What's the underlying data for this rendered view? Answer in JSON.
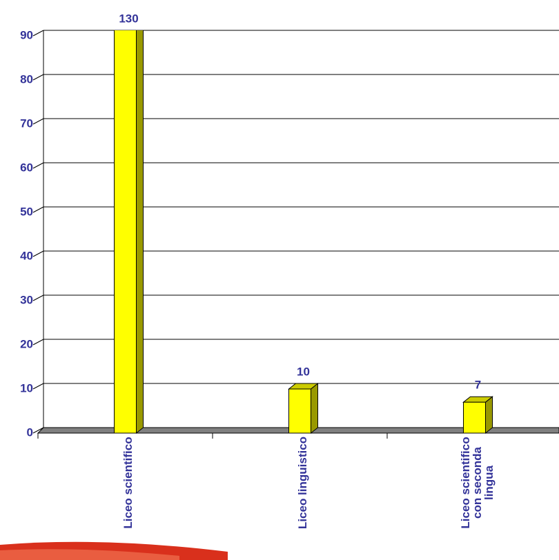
{
  "chart_data": {
    "type": "bar3d",
    "categories": [
      "Liceo scientifico",
      "Liceo linguistico",
      "Liceo scientifico con seconda lingua"
    ],
    "values": [
      130,
      10,
      7
    ],
    "color": "#ffff00",
    "ylim": [
      0,
      90
    ],
    "yticks": [
      0,
      10,
      20,
      30,
      40,
      50,
      60,
      70,
      80,
      90
    ],
    "grid": true
  }
}
